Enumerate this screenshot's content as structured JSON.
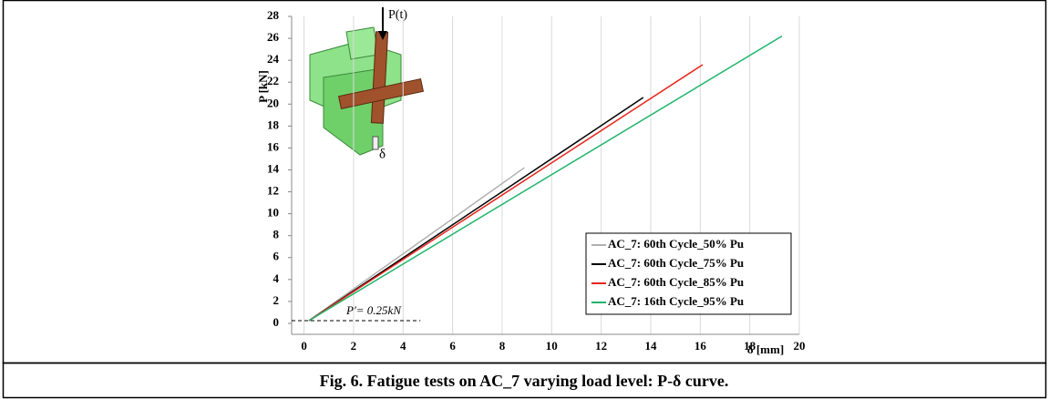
{
  "chart_data": {
    "type": "line",
    "xlabel": "δ [mm]",
    "ylabel": "P [kN]",
    "xlim": [
      -0.5,
      20
    ],
    "ylim": [
      -1,
      28
    ],
    "xticks": [
      0,
      2,
      4,
      6,
      8,
      10,
      12,
      14,
      16,
      18,
      20
    ],
    "yticks": [
      0,
      2,
      4,
      6,
      8,
      10,
      12,
      14,
      16,
      18,
      20,
      22,
      24,
      26,
      28
    ],
    "grid": true,
    "legend": "lower right",
    "series": [
      {
        "name": "AC_7: 60th Cycle_50% Pu",
        "color": "#b0b0b0",
        "x": [
          0.2,
          8.9
        ],
        "values": [
          0.25,
          14.2
        ]
      },
      {
        "name": "AC_7: 60th Cycle_75% Pu",
        "color": "#000000",
        "x": [
          0.2,
          13.7
        ],
        "values": [
          0.25,
          20.6
        ]
      },
      {
        "name": "AC_7: 60th Cycle_85% Pu",
        "color": "#e8261c",
        "x": [
          0.2,
          16.1
        ],
        "values": [
          0.25,
          23.6
        ]
      },
      {
        "name": "AC_7: 16th Cycle_95% Pu",
        "color": "#1fb56b",
        "x": [
          0.2,
          19.3
        ],
        "values": [
          0.25,
          26.2
        ]
      }
    ],
    "reference_line": {
      "y": 0.25,
      "label": "P′= 0.25kN"
    },
    "inset_labels": [
      "P(t)",
      "δ"
    ]
  },
  "caption": "Fig. 6. Fatigue tests on AC_7 varying load level:  P-δ curve."
}
